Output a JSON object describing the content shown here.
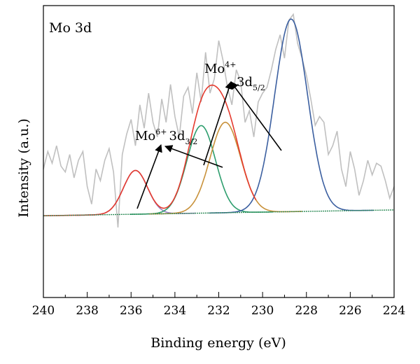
{
  "chart_data": {
    "type": "line",
    "title": "",
    "panel_label": "Mo 3d",
    "xlabel": "Binding energy (eV)",
    "ylabel": "Intensity (a.u.)",
    "xlim": [
      240,
      224
    ],
    "x_reversed": true,
    "ylim": [
      0,
      1
    ],
    "y_tick_labels_shown": false,
    "x_ticks": [
      240,
      238,
      236,
      234,
      232,
      230,
      228,
      226,
      224
    ],
    "x_tick_labels": [
      "240",
      "238",
      "236",
      "234",
      "232",
      "230",
      "228",
      "226",
      "224"
    ],
    "grid": false,
    "legend": "none",
    "annotations": [
      {
        "ion": "Mo",
        "charge": "6+",
        "orbital": "3d",
        "sub": "3/2"
      },
      {
        "ion": "Mo",
        "charge": "4+",
        "orbital": "3d",
        "sub": "5/2"
      }
    ],
    "series": [
      {
        "role": "raw",
        "color": "#c0c0c0",
        "x": [
          240,
          239.8,
          239.6,
          239.4,
          239.2,
          239,
          238.8,
          238.6,
          238.4,
          238.2,
          238,
          237.8,
          237.6,
          237.4,
          237.2,
          237,
          236.8,
          236.6,
          236.4,
          236.2,
          236,
          235.8,
          235.6,
          235.4,
          235.2,
          235,
          234.8,
          234.6,
          234.4,
          234.2,
          234,
          233.8,
          233.6,
          233.4,
          233.2,
          233,
          232.8,
          232.6,
          232.4,
          232.2,
          232,
          231.8,
          231.6,
          231.4,
          231.2,
          231,
          230.8,
          230.6,
          230.4,
          230.2,
          230,
          229.8,
          229.6,
          229.4,
          229.2,
          229,
          228.8,
          228.6,
          228.4,
          228.2,
          228,
          227.8,
          227.6,
          227.4,
          227.2,
          227,
          226.8,
          226.6,
          226.4,
          226.2,
          226,
          225.8,
          225.6,
          225.4,
          225.2,
          225,
          224.8,
          224.6,
          224.4,
          224.2,
          224
        ],
        "y": [
          0.44,
          0.5,
          0.46,
          0.52,
          0.45,
          0.43,
          0.49,
          0.41,
          0.47,
          0.5,
          0.38,
          0.32,
          0.44,
          0.4,
          0.47,
          0.51,
          0.43,
          0.24,
          0.49,
          0.56,
          0.61,
          0.52,
          0.66,
          0.58,
          0.7,
          0.6,
          0.55,
          0.68,
          0.6,
          0.73,
          0.62,
          0.55,
          0.69,
          0.72,
          0.63,
          0.77,
          0.67,
          0.84,
          0.7,
          0.75,
          0.88,
          0.81,
          0.72,
          0.66,
          0.78,
          0.74,
          0.6,
          0.64,
          0.55,
          0.67,
          0.7,
          0.72,
          0.78,
          0.85,
          0.9,
          0.82,
          0.95,
          0.97,
          0.87,
          0.82,
          0.76,
          0.68,
          0.59,
          0.62,
          0.6,
          0.49,
          0.52,
          0.57,
          0.44,
          0.38,
          0.5,
          0.44,
          0.35,
          0.4,
          0.47,
          0.42,
          0.46,
          0.45,
          0.4,
          0.34,
          0.38
        ]
      },
      {
        "role": "baseline",
        "color": "#2e8b57",
        "x": [
          240,
          224
        ],
        "y": [
          0.28,
          0.3
        ]
      },
      {
        "role": "component",
        "color": "#9b7fc2",
        "center": 235.8,
        "sigma": 0.55,
        "amplitude": 0.15
      },
      {
        "role": "component",
        "color": "#2e9e6e",
        "center": 232.8,
        "sigma": 0.65,
        "amplitude": 0.3
      },
      {
        "role": "component",
        "color": "#c8913a",
        "center": 231.7,
        "sigma": 0.7,
        "amplitude": 0.31
      },
      {
        "role": "component",
        "color": "#3b5fa0",
        "center": 228.7,
        "sigma": 0.75,
        "amplitude": 0.66
      },
      {
        "role": "envelope",
        "color": "#e53a2e",
        "sum_of": [
          0,
          1,
          2
        ],
        "region": [
          240,
          230.3
        ]
      }
    ]
  }
}
